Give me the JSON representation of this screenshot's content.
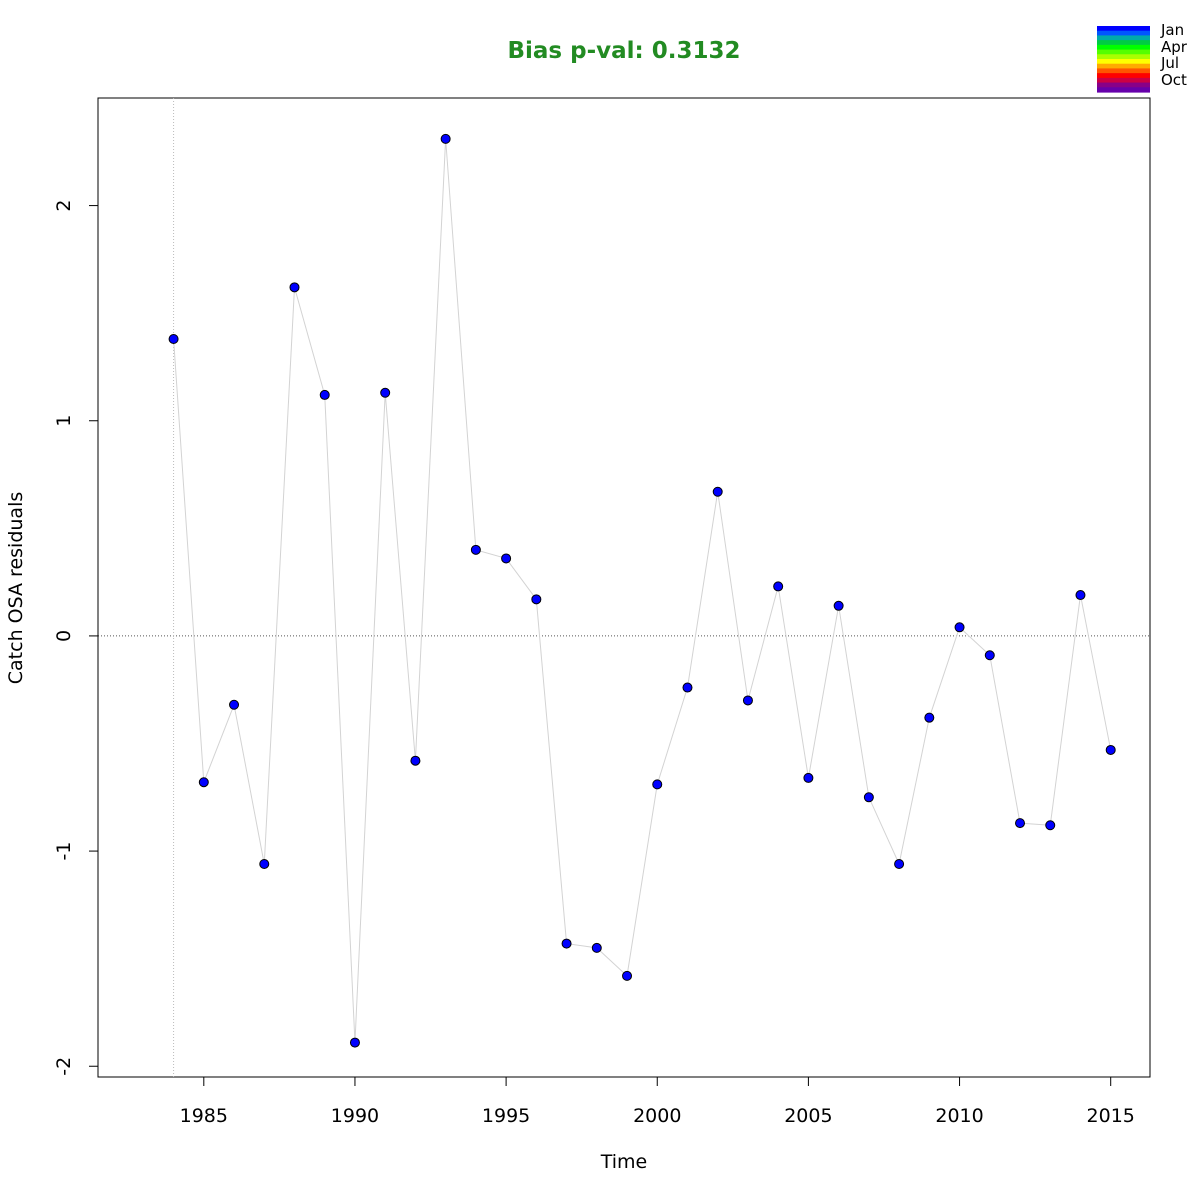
{
  "chart_data": {
    "type": "scatter",
    "title": "Bias p-val: 0.3132",
    "title_color": "#228B22",
    "xlabel": "Time",
    "ylabel": "Catch OSA residuals",
    "xlim": [
      1981.5,
      2016.3
    ],
    "ylim": [
      -2.05,
      2.5
    ],
    "xticks": [
      1985,
      1990,
      1995,
      2000,
      2005,
      2010,
      2015
    ],
    "yticks": [
      -2,
      -1,
      0,
      1,
      2
    ],
    "grid": false,
    "zero_line": true,
    "vertical_reference_line": 1984,
    "point_color": "#0000FF",
    "line_color": "#D3D3D3",
    "legend_position": "top-right",
    "legend": [
      "Jan",
      "Apr",
      "Jul",
      "Oct"
    ],
    "legend_colors": [
      "#0000FF",
      "#0055FF",
      "#00AAAA",
      "#00CC44",
      "#00FF00",
      "#55FF00",
      "#AAFF00",
      "#FFFF00",
      "#FFAA00",
      "#FF5500",
      "#FF0000",
      "#CC0044",
      "#880088",
      "#6600AA"
    ],
    "series": [
      {
        "x": [
          1984,
          1985,
          1986,
          1987,
          1988,
          1989,
          1990,
          1991,
          1992,
          1993,
          1994,
          1995,
          1996,
          1997,
          1998,
          1999,
          2000,
          2001,
          2002,
          2003,
          2004,
          2005,
          2006,
          2007,
          2008,
          2009,
          2010,
          2011,
          2012,
          2013,
          2014,
          2015
        ],
        "y": [
          1.38,
          -0.68,
          -0.32,
          -1.06,
          1.62,
          1.12,
          -1.89,
          1.13,
          -0.58,
          2.31,
          0.4,
          0.36,
          0.17,
          -1.43,
          -1.45,
          -1.58,
          -0.69,
          -0.24,
          0.67,
          -0.3,
          0.23,
          -0.66,
          0.14,
          -0.75,
          -1.06,
          -0.38,
          0.04,
          -0.09,
          -0.87,
          -0.88,
          0.19,
          -0.53
        ]
      }
    ]
  }
}
